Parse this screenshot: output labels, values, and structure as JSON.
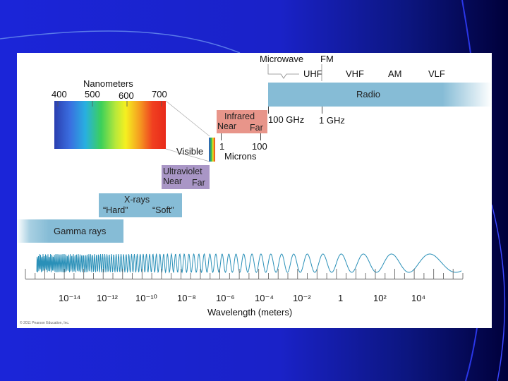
{
  "diagram": {
    "nanometers_title": "Nanometers",
    "nm_ticks": [
      "400",
      "500",
      "600",
      "700"
    ],
    "visible_label": "Visible",
    "infrared": {
      "title": "Infrared",
      "near": "Near",
      "far": "Far"
    },
    "microns": {
      "one": "1",
      "hundred": "100",
      "unit": "Microns"
    },
    "ultraviolet": {
      "title": "Ultraviolet",
      "near": "Near",
      "far": "Far"
    },
    "xrays": {
      "title": "X-rays",
      "hard": "“Hard”",
      "soft": "“Soft”"
    },
    "gamma_label": "Gamma rays",
    "radio": {
      "label": "Radio",
      "microwave": "Microwave",
      "fm": "FM",
      "uhf": "UHF",
      "vhf": "VHF",
      "am": "AM",
      "vlf": "VLF",
      "ghz100": "100 GHz",
      "ghz1": "1 GHz"
    },
    "axis_ticks": [
      "10⁻¹⁴",
      "10⁻¹²",
      "10⁻¹⁰",
      "10⁻⁸",
      "10⁻⁶",
      "10⁻⁴",
      "10⁻²",
      "1",
      "10²",
      "10⁴"
    ],
    "axis_title": "Wavelength (meters)",
    "copyright": "© 2011 Pearson Education, Inc."
  },
  "colors": {
    "background_blue": "#1b25d8",
    "band_blue": "#86bcd6",
    "infrared_box": "#e8958a",
    "ultraviolet_box": "#a996c6"
  }
}
